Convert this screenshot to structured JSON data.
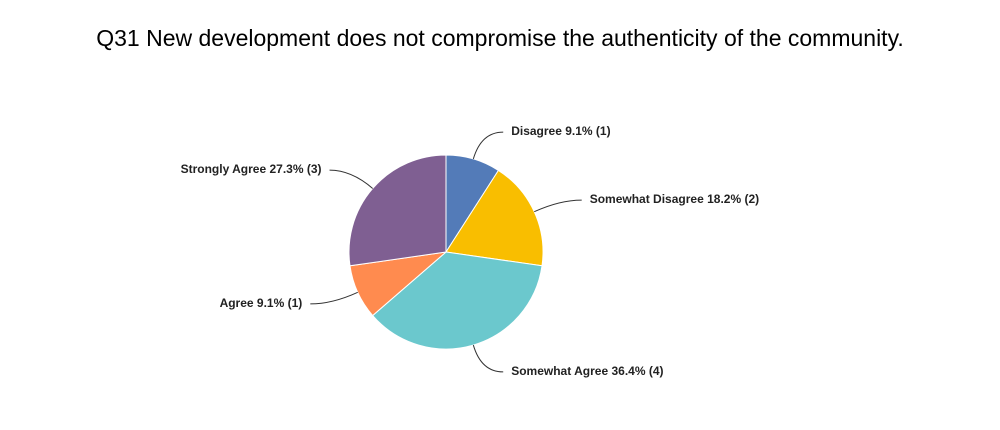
{
  "chart_data": {
    "type": "pie",
    "title": "Q31 New development does not compromise the authenticity of the community.",
    "categories": [
      "Disagree",
      "Somewhat Disagree",
      "Somewhat Agree",
      "Agree",
      "Strongly Agree"
    ],
    "values": [
      9.1,
      18.2,
      36.4,
      9.1,
      27.3
    ],
    "value_labels": [
      "9.1% (1)",
      "18.2% (2)",
      "36.4% (4)",
      "9.1% (1)",
      "27.3% (3)"
    ],
    "colors": [
      "#537bb8",
      "#f9be00",
      "#6bc8cd",
      "#ff8b4f",
      "#7f5f92"
    ]
  }
}
